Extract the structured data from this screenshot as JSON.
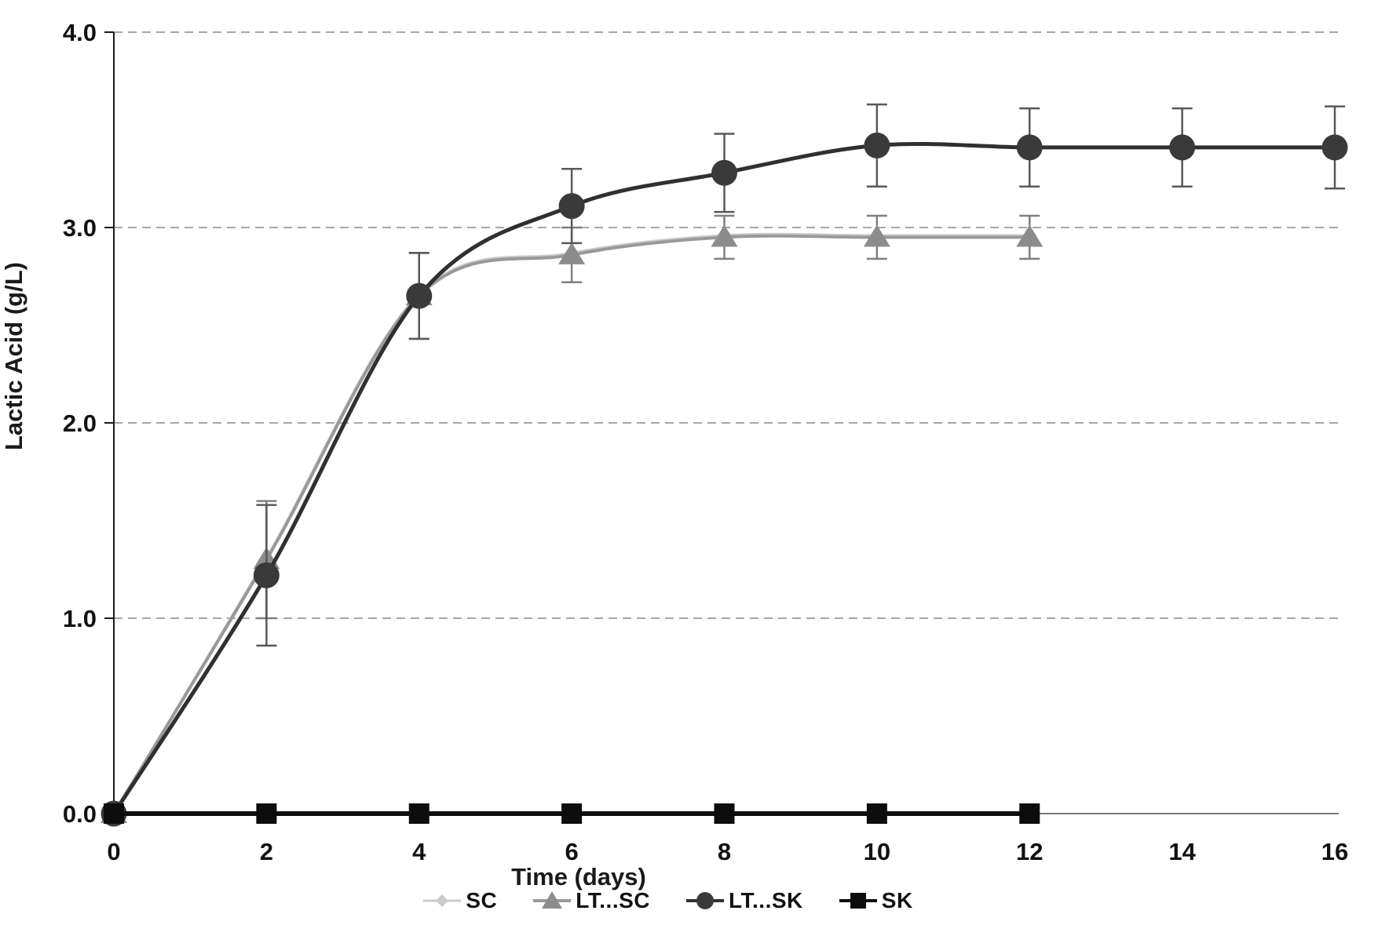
{
  "chart_data": {
    "type": "line",
    "title": "",
    "xlabel": "Time (days)",
    "ylabel": "Lactic Acid (g/L)",
    "xlim": [
      0,
      16
    ],
    "ylim": [
      0,
      4
    ],
    "xticks": [
      0,
      2,
      4,
      6,
      8,
      10,
      12,
      14,
      16
    ],
    "xtick_labels": [
      "0",
      "2",
      "4",
      "6",
      "8",
      "10",
      "12",
      "14",
      "16"
    ],
    "yticks": [
      0,
      1,
      2,
      3,
      4
    ],
    "ytick_labels": [
      "0.0",
      "1.0",
      "2.0",
      "3.0",
      "4.0"
    ],
    "grid": "horizontal-dashed",
    "gridline_color": "#a6a6a6",
    "axis_color": "#2a2a2a",
    "legend_position": "bottom-center",
    "series": [
      {
        "name": "SC",
        "marker": "diamond",
        "line_color": "#cbcbcb",
        "marker_color": "#cbcbcb",
        "err_color": "#c0c0c0",
        "line_width": 3,
        "x": [
          0,
          2,
          4,
          6,
          8,
          10,
          12
        ],
        "y": [
          0,
          1.31,
          2.66,
          2.87,
          2.96,
          2.96,
          2.96
        ],
        "err": [
          0,
          0,
          0,
          0,
          0,
          0,
          0
        ]
      },
      {
        "name": "LT...SC",
        "marker": "triangle",
        "line_color": "#999999",
        "marker_color": "#8c8c8c",
        "err_color": "#7f7f7f",
        "line_width": 4,
        "x": [
          0,
          2,
          4,
          6,
          8,
          10,
          12
        ],
        "y": [
          0,
          1.3,
          2.65,
          2.86,
          2.95,
          2.95,
          2.95
        ],
        "err": [
          0,
          0.3,
          0.22,
          0.14,
          0.11,
          0.11,
          0.11
        ]
      },
      {
        "name": "LT...SK",
        "marker": "circle",
        "line_color": "#303030",
        "marker_color": "#3a3a3a",
        "err_color": "#595959",
        "line_width": 5,
        "x": [
          0,
          2,
          4,
          6,
          8,
          10,
          12,
          14,
          16
        ],
        "y": [
          0,
          1.22,
          2.65,
          3.11,
          3.28,
          3.42,
          3.41,
          3.41,
          3.41
        ],
        "err": [
          0,
          0.36,
          0.22,
          0.19,
          0.2,
          0.21,
          0.2,
          0.2,
          0.21
        ]
      },
      {
        "name": "SK",
        "marker": "square",
        "line_color": "#0d0d0d",
        "marker_color": "#0d0d0d",
        "err_color": "#0d0d0d",
        "line_width": 6,
        "x": [
          0,
          2,
          4,
          6,
          8,
          10,
          12
        ],
        "y": [
          0,
          0,
          0,
          0,
          0,
          0,
          0
        ],
        "err": [
          0,
          0,
          0,
          0,
          0,
          0,
          0
        ]
      }
    ]
  }
}
